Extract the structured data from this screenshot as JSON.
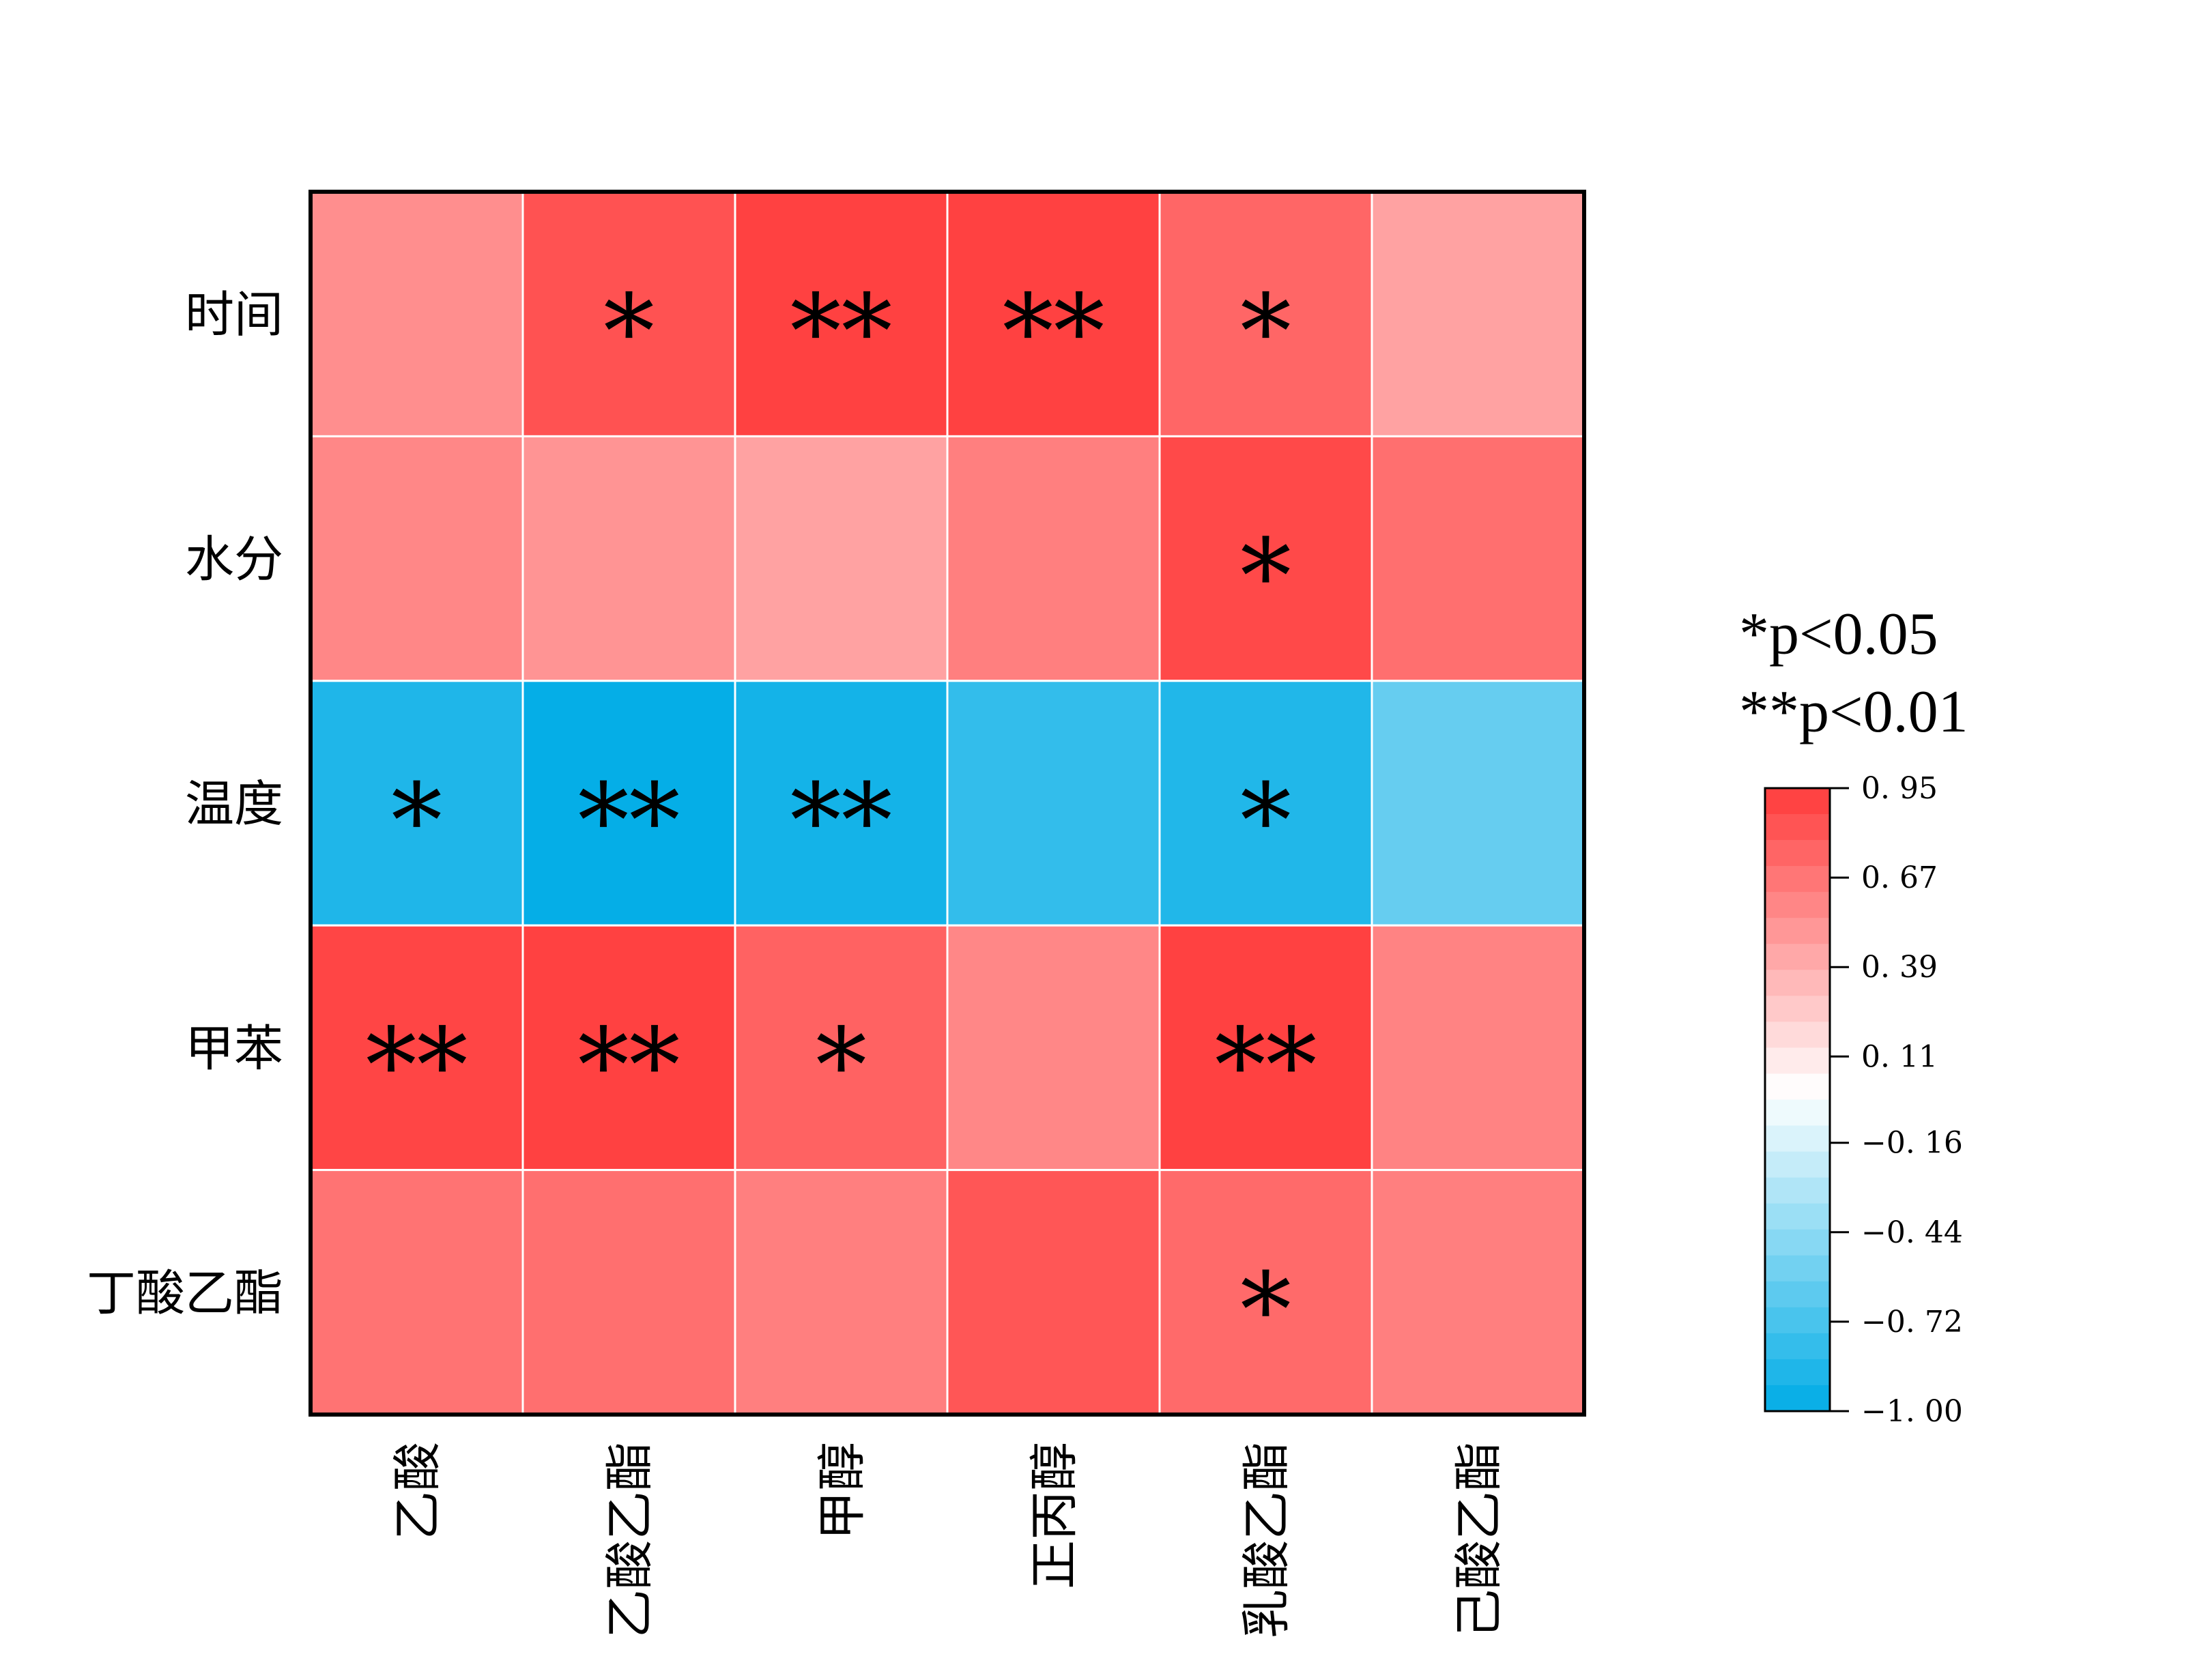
{
  "chart_data": {
    "type": "heatmap",
    "title": "",
    "rows": [
      "时间",
      "水分",
      "温度",
      "甲苯",
      "丁酸乙酯"
    ],
    "columns": [
      "乙酸",
      "乙酸乙酯",
      "甲醇",
      "正丙醇",
      "乳酸乙酯",
      "己酸乙酯"
    ],
    "values": [
      [
        0.55,
        0.84,
        0.92,
        0.92,
        0.74,
        0.45
      ],
      [
        0.58,
        0.52,
        0.45,
        0.62,
        0.88,
        0.7
      ],
      [
        -0.88,
        -0.98,
        -0.92,
        -0.8,
        -0.87,
        -0.6
      ],
      [
        0.9,
        0.92,
        0.76,
        0.58,
        0.92,
        0.6
      ],
      [
        0.68,
        0.7,
        0.62,
        0.82,
        0.72,
        0.62
      ]
    ],
    "significance": [
      [
        "",
        "*",
        "**",
        "**",
        "*",
        ""
      ],
      [
        "",
        "",
        "",
        "",
        "*",
        ""
      ],
      [
        "*",
        "**",
        "**",
        "",
        "*",
        ""
      ],
      [
        "**",
        "**",
        "*",
        "",
        "**",
        ""
      ],
      [
        "",
        "",
        "",
        "",
        "*",
        ""
      ]
    ],
    "significance_legend": [
      "*p<0.05",
      "**p<0.01"
    ],
    "colorbar": {
      "min": -1.0,
      "max": 0.95,
      "ticks": [
        0.95,
        0.67,
        0.39,
        0.11,
        -0.16,
        -0.44,
        -0.72,
        -1.0
      ],
      "tick_labels": [
        "0. 95",
        "0. 67",
        "0. 39",
        "0. 11",
        "−0. 16",
        "−0. 44",
        "−0. 72",
        "−1. 00"
      ],
      "colors": {
        "high": "#ff3b3b",
        "mid": "#ffffff",
        "low": "#00ace6"
      },
      "bands": 24
    }
  }
}
